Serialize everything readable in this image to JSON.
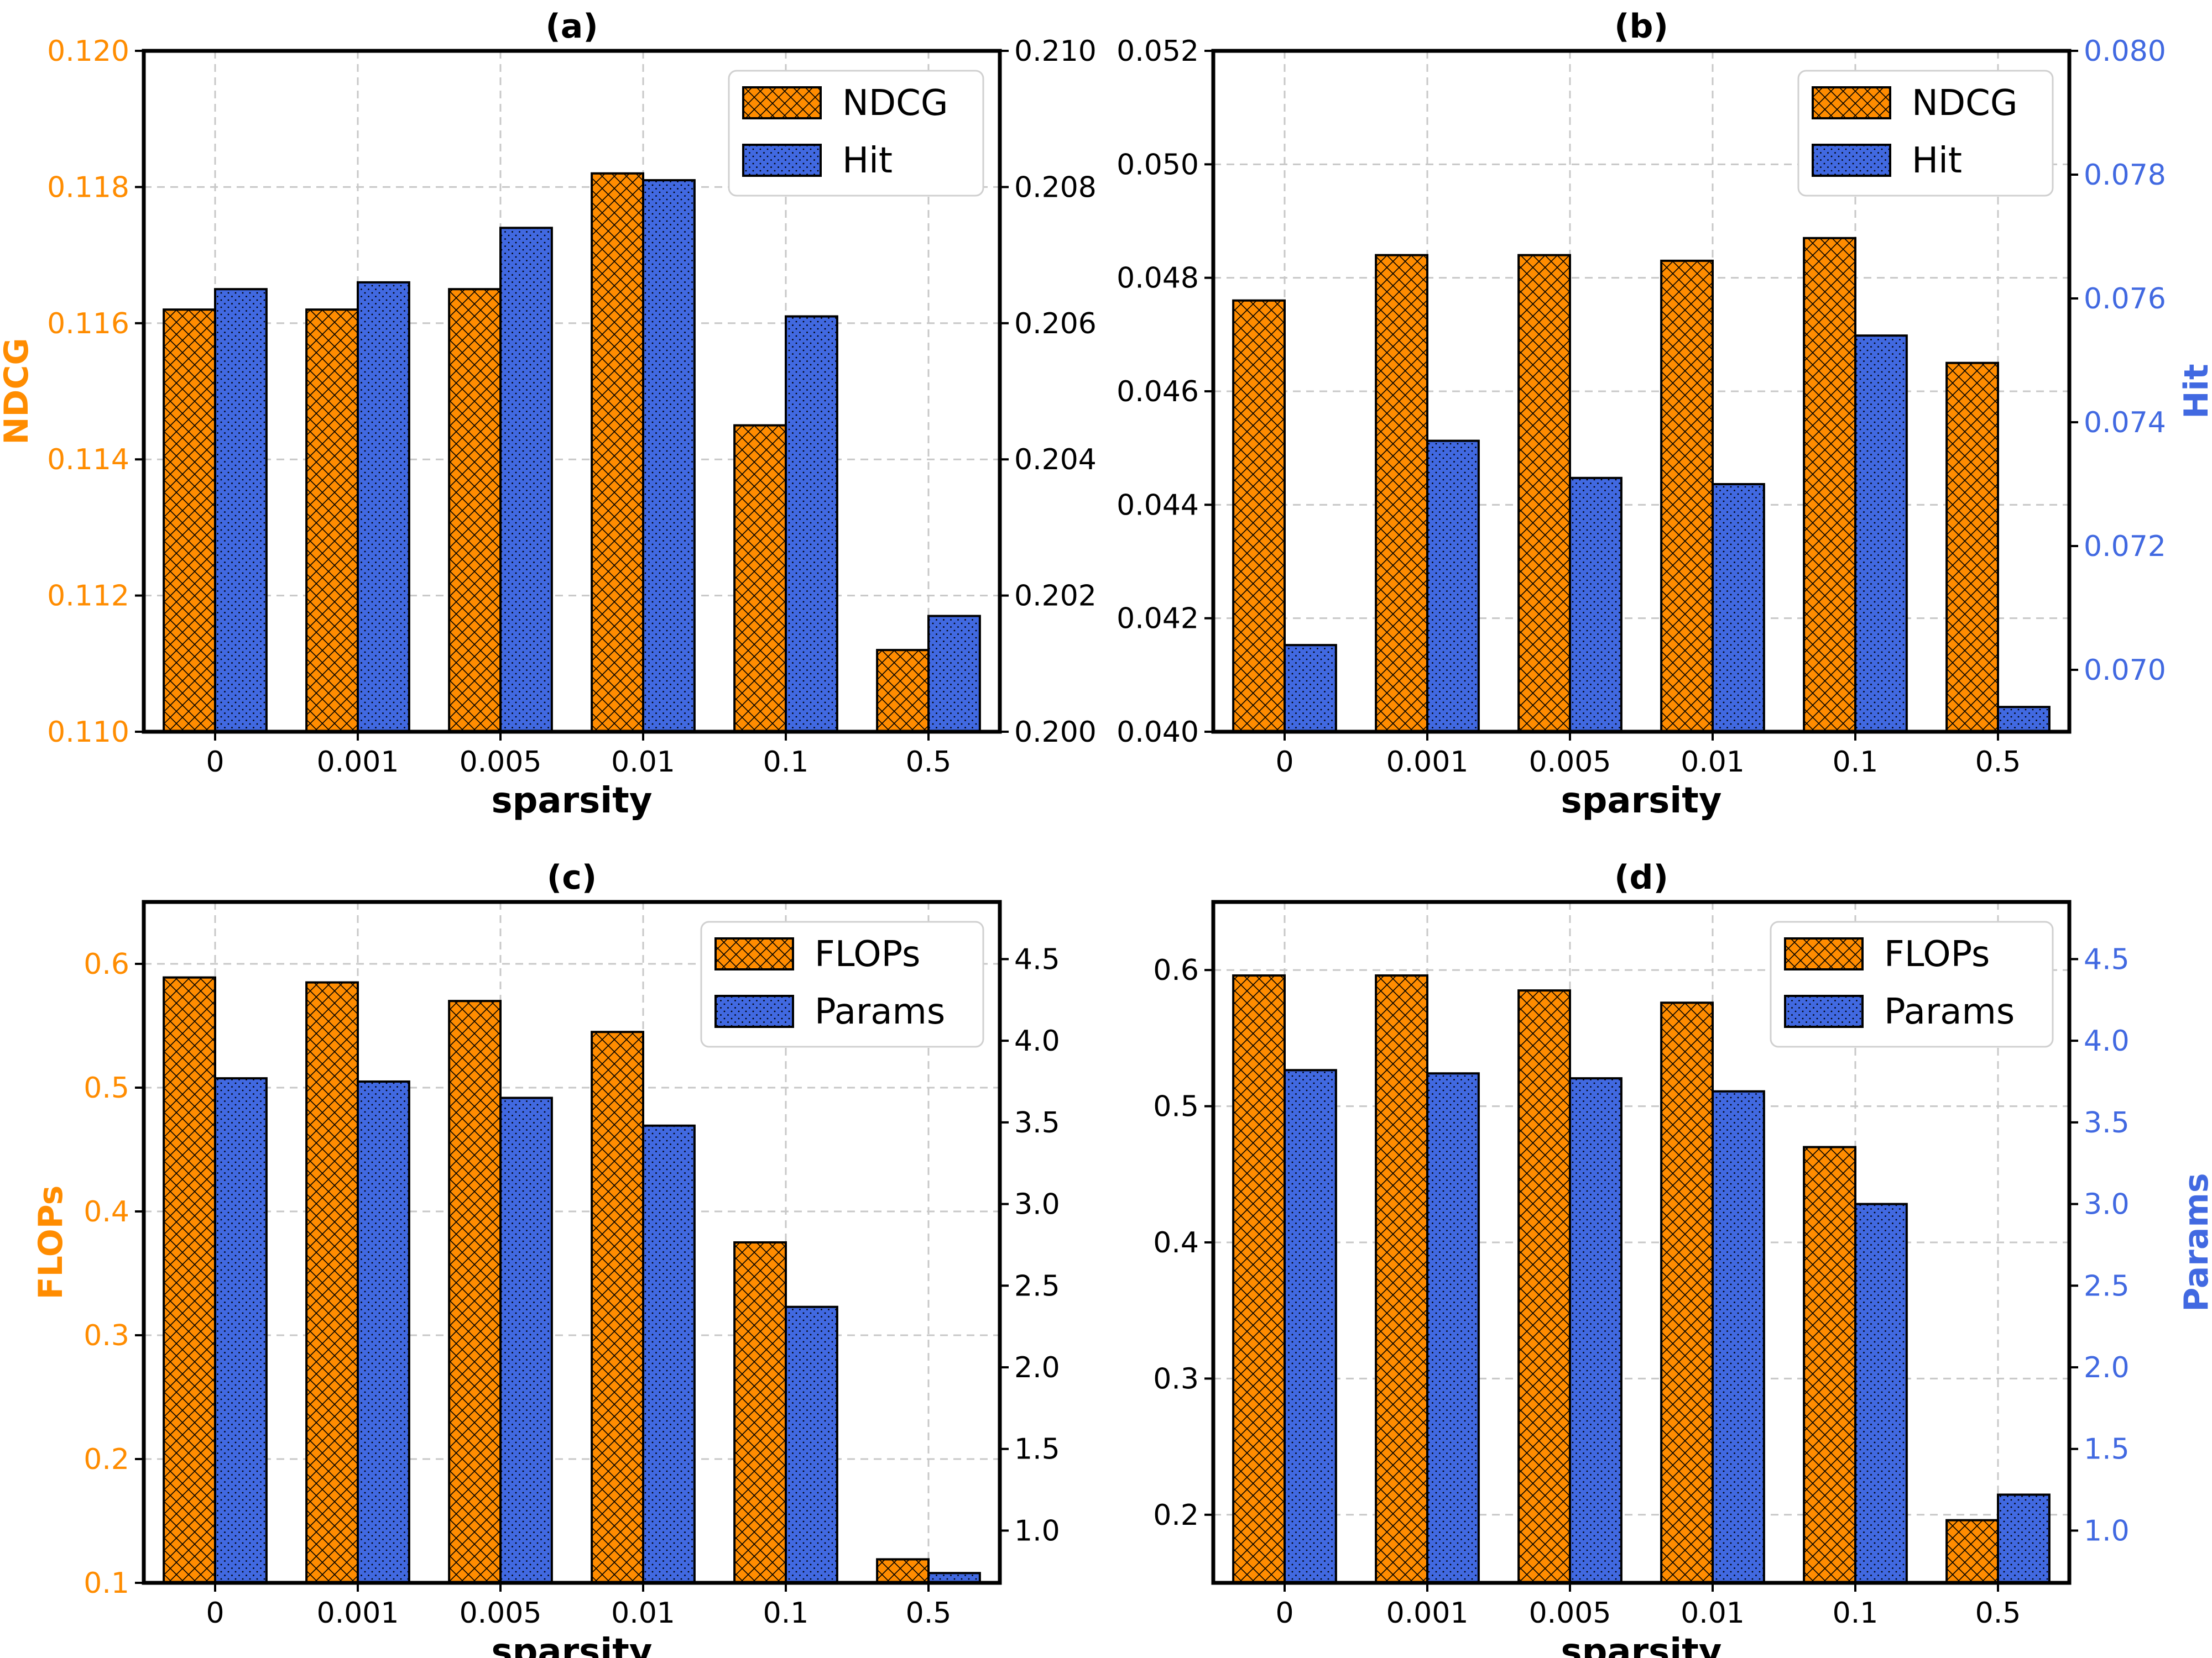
{
  "colors": {
    "left_axis": "#ff8c00",
    "right_axis": "#4169e1",
    "grid": "#c8c8c8"
  },
  "chart_data": [
    {
      "type": "bar",
      "panel": "(a)",
      "title": "(a)",
      "xlabel": "sparsity",
      "ylabel_left": "",
      "ylabel_right": "",
      "left_colored": true,
      "right_colored": false,
      "categories": [
        "0",
        "0.001",
        "0.005",
        "0.01",
        "0.1",
        "0.5"
      ],
      "legend_position": "top-right",
      "grid": true,
      "series": [
        {
          "name": "NDCG",
          "axis": "left",
          "pattern": "cross-hatch",
          "values": [
            0.1162,
            0.1162,
            0.1165,
            0.1182,
            0.1145,
            0.1112
          ]
        },
        {
          "name": "Hit",
          "axis": "right",
          "pattern": "dots",
          "values": [
            0.2065,
            0.2066,
            0.2074,
            0.2081,
            0.2061,
            0.2017
          ]
        }
      ],
      "ylim_left": [
        0.11,
        0.12
      ],
      "ylim_right": [
        0.2,
        0.21
      ],
      "yticks_left": [
        "0.110",
        "0.112",
        "0.114",
        "0.116",
        "0.118",
        "0.120"
      ],
      "yticks_right": [
        "0.200",
        "0.202",
        "0.204",
        "0.206",
        "0.208",
        "0.210"
      ]
    },
    {
      "type": "bar",
      "panel": "(b)",
      "title": "(b)",
      "xlabel": "sparsity",
      "ylabel_left": "",
      "ylabel_right": "Hit",
      "left_colored": false,
      "right_colored": true,
      "categories": [
        "0",
        "0.001",
        "0.005",
        "0.01",
        "0.1",
        "0.5"
      ],
      "legend_position": "top-right",
      "grid": true,
      "series": [
        {
          "name": "NDCG",
          "axis": "left",
          "pattern": "cross-hatch",
          "values": [
            0.0476,
            0.0484,
            0.0484,
            0.0483,
            0.0487,
            0.0465
          ]
        },
        {
          "name": "Hit",
          "axis": "right",
          "pattern": "dots",
          "values": [
            0.0704,
            0.0737,
            0.0731,
            0.073,
            0.0754,
            0.0694
          ]
        }
      ],
      "ylim_left": [
        0.04,
        0.052
      ],
      "ylim_right": [
        0.069,
        0.08
      ],
      "yticks_left": [
        "0.040",
        "0.042",
        "0.044",
        "0.046",
        "0.048",
        "0.050",
        "0.052"
      ],
      "yticks_right": [
        "0.070",
        "0.072",
        "0.074",
        "0.076",
        "0.078",
        "0.080"
      ]
    },
    {
      "type": "bar",
      "panel": "(c)",
      "title": "(c)",
      "xlabel": "sparsity",
      "ylabel_left": "FLOPs",
      "ylabel_right": "",
      "left_colored": true,
      "right_colored": false,
      "categories": [
        "0",
        "0.001",
        "0.005",
        "0.01",
        "0.1",
        "0.5"
      ],
      "legend_position": "top-right",
      "grid": true,
      "series": [
        {
          "name": "FLOPs",
          "axis": "left",
          "pattern": "cross-hatch",
          "values": [
            0.589,
            0.585,
            0.57,
            0.545,
            0.375,
            0.119
          ]
        },
        {
          "name": "Params",
          "axis": "right",
          "pattern": "dots",
          "values": [
            3.77,
            3.75,
            3.65,
            3.48,
            2.37,
            0.74
          ]
        }
      ],
      "ylim_left": [
        0.1,
        0.65
      ],
      "ylim_right": [
        0.68,
        4.85
      ],
      "yticks_left": [
        "0.1",
        "0.2",
        "0.3",
        "0.4",
        "0.5",
        "0.6"
      ],
      "yticks_right": [
        "1.0",
        "1.5",
        "2.0",
        "2.5",
        "3.0",
        "3.5",
        "4.0",
        "4.5"
      ]
    },
    {
      "type": "bar",
      "panel": "(d)",
      "title": "(d)",
      "xlabel": "sparsity",
      "ylabel_left": "",
      "ylabel_right": "Params",
      "left_colored": false,
      "right_colored": true,
      "categories": [
        "0",
        "0.001",
        "0.005",
        "0.01",
        "0.1",
        "0.5"
      ],
      "legend_position": "top-right",
      "grid": true,
      "series": [
        {
          "name": "FLOPs",
          "axis": "left",
          "pattern": "cross-hatch",
          "values": [
            0.596,
            0.596,
            0.585,
            0.576,
            0.47,
            0.196
          ]
        },
        {
          "name": "Params",
          "axis": "right",
          "pattern": "dots",
          "values": [
            3.82,
            3.8,
            3.77,
            3.69,
            3.0,
            1.22
          ]
        }
      ],
      "ylim_left": [
        0.15,
        0.65
      ],
      "ylim_right": [
        0.68,
        4.85
      ],
      "yticks_left": [
        "0.2",
        "0.3",
        "0.4",
        "0.5",
        "0.6"
      ],
      "yticks_right": [
        "1.0",
        "1.5",
        "2.0",
        "2.5",
        "3.0",
        "3.5",
        "4.0",
        "4.5"
      ]
    }
  ],
  "ndcg_label_panel_a": "NDCG"
}
